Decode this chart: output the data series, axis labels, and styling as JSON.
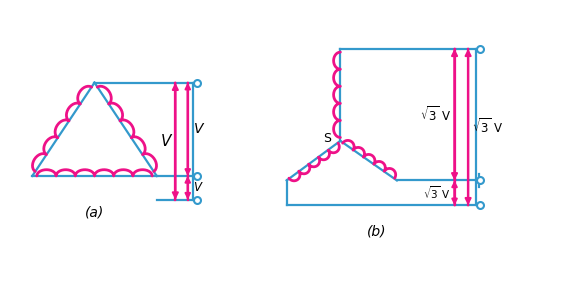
{
  "fig_width": 5.79,
  "fig_height": 2.84,
  "dpi": 100,
  "blue": "#3399CC",
  "pink": "#EE1188",
  "bg": "#FFFFFF",
  "label_a": "(a)",
  "label_b": "(b)",
  "label_s": "S",
  "label_V": "V"
}
